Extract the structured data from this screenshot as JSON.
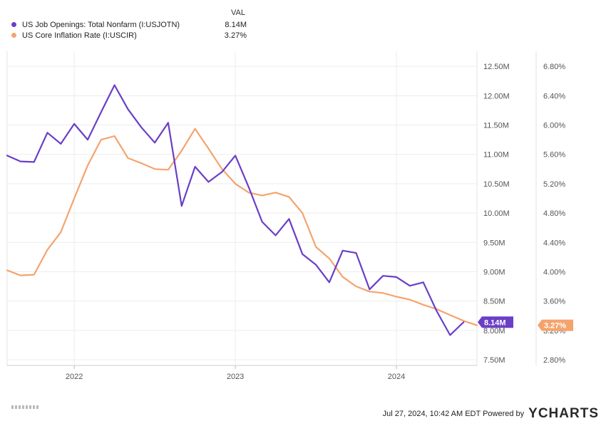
{
  "legend": {
    "header": "VAL",
    "items": [
      {
        "name": "US Job Openings: Total Nonfarm (I:USJOTN)",
        "value": "8.14M",
        "color": "#6a3fc6"
      },
      {
        "name": "US Core Inflation Rate (I:USCIR)",
        "value": "3.27%",
        "color": "#f5a36d"
      }
    ]
  },
  "footer": {
    "timestamp": "Jul 27, 2024, 10:42 AM EDT Powered by",
    "brand": "YCHARTS"
  },
  "chart_data": {
    "type": "line",
    "x_ticks": [
      "2022",
      "2023",
      "2024"
    ],
    "x_range": [
      "2021-08",
      "2024-07"
    ],
    "left_axis": {
      "series": "US Job Openings: Total Nonfarm (I:USJOTN)",
      "ylim": [
        7.5,
        13.0
      ],
      "tick_values": [
        7.5,
        8.0,
        8.5,
        9.0,
        9.5,
        10.0,
        10.5,
        11.0,
        11.5,
        12.0,
        12.5
      ],
      "tick_labels": [
        "7.50M",
        "8.00M",
        "8.50M",
        "9.00M",
        "9.50M",
        "10.00M",
        "10.50M",
        "11.00M",
        "11.50M",
        "12.00M",
        "12.50M"
      ],
      "last_value_tag": "8.14M"
    },
    "right_axis": {
      "series": "US Core Inflation Rate (I:USCIR)",
      "ylim": [
        2.8,
        7.2
      ],
      "tick_values": [
        2.8,
        3.2,
        3.6,
        4.0,
        4.4,
        4.8,
        5.2,
        5.6,
        6.0,
        6.4,
        6.8
      ],
      "tick_labels": [
        "2.80%",
        "3.20%",
        "3.60%",
        "4.00%",
        "4.40%",
        "4.80%",
        "5.20%",
        "5.60%",
        "6.00%",
        "6.40%",
        "6.80%"
      ],
      "last_value_tag": "3.27%"
    },
    "series": [
      {
        "name": "US Job Openings: Total Nonfarm (I:USJOTN)",
        "axis": "left",
        "color": "#6a3fc6",
        "unit": "M",
        "points": [
          [
            "2021-08",
            10.98
          ],
          [
            "2021-09",
            10.88
          ],
          [
            "2021-10",
            10.87
          ],
          [
            "2021-11",
            11.37
          ],
          [
            "2021-12",
            11.18
          ],
          [
            "2022-01",
            11.52
          ],
          [
            "2022-02",
            11.25
          ],
          [
            "2022-03",
            11.72
          ],
          [
            "2022-04",
            12.18
          ],
          [
            "2022-05",
            11.77
          ],
          [
            "2022-06",
            11.46
          ],
          [
            "2022-07",
            11.2
          ],
          [
            "2022-08",
            11.54
          ],
          [
            "2022-09",
            10.12
          ],
          [
            "2022-10",
            10.79
          ],
          [
            "2022-11",
            10.53
          ],
          [
            "2022-12",
            10.7
          ],
          [
            "2023-01",
            10.98
          ],
          [
            "2023-02",
            10.44
          ],
          [
            "2023-03",
            9.85
          ],
          [
            "2023-04",
            9.62
          ],
          [
            "2023-05",
            9.9
          ],
          [
            "2023-06",
            9.3
          ],
          [
            "2023-07",
            9.12
          ],
          [
            "2023-08",
            8.82
          ],
          [
            "2023-09",
            9.36
          ],
          [
            "2023-10",
            9.32
          ],
          [
            "2023-11",
            8.7
          ],
          [
            "2023-12",
            8.93
          ],
          [
            "2024-01",
            8.91
          ],
          [
            "2024-02",
            8.76
          ],
          [
            "2024-03",
            8.82
          ],
          [
            "2024-04",
            8.33
          ],
          [
            "2024-05",
            7.92
          ],
          [
            "2024-06",
            8.14
          ]
        ]
      },
      {
        "name": "US Core Inflation Rate (I:USCIR)",
        "axis": "right",
        "color": "#f5a36d",
        "unit": "%",
        "points": [
          [
            "2021-08",
            4.02
          ],
          [
            "2021-09",
            3.95
          ],
          [
            "2021-10",
            3.96
          ],
          [
            "2021-11",
            4.3
          ],
          [
            "2021-12",
            4.54
          ],
          [
            "2022-01",
            5.0
          ],
          [
            "2022-02",
            5.45
          ],
          [
            "2022-03",
            5.8
          ],
          [
            "2022-04",
            5.85
          ],
          [
            "2022-05",
            5.55
          ],
          [
            "2022-06",
            5.48
          ],
          [
            "2022-07",
            5.4
          ],
          [
            "2022-08",
            5.39
          ],
          [
            "2022-09",
            5.65
          ],
          [
            "2022-10",
            5.95
          ],
          [
            "2022-11",
            5.68
          ],
          [
            "2022-12",
            5.4
          ],
          [
            "2023-01",
            5.2
          ],
          [
            "2023-02",
            5.08
          ],
          [
            "2023-03",
            5.04
          ],
          [
            "2023-04",
            5.08
          ],
          [
            "2023-05",
            5.02
          ],
          [
            "2023-06",
            4.8
          ],
          [
            "2023-07",
            4.34
          ],
          [
            "2023-08",
            4.18
          ],
          [
            "2023-09",
            3.93
          ],
          [
            "2023-10",
            3.8
          ],
          [
            "2023-11",
            3.73
          ],
          [
            "2023-12",
            3.71
          ],
          [
            "2024-01",
            3.66
          ],
          [
            "2024-02",
            3.62
          ],
          [
            "2024-03",
            3.55
          ],
          [
            "2024-04",
            3.49
          ],
          [
            "2024-05",
            3.41
          ],
          [
            "2024-06",
            3.33
          ],
          [
            "2024-07",
            3.27
          ]
        ]
      }
    ],
    "grid": true
  }
}
